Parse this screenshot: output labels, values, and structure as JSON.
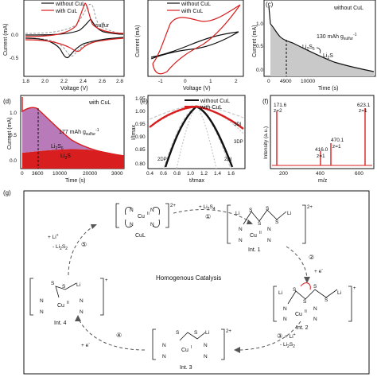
{
  "panels": {
    "a": {
      "ylabel": "Current (mA)",
      "xlabel": "Voltage (V)",
      "xticks": [
        "1.8",
        "2.0",
        "2.2",
        "2.4",
        "2.6",
        "2.8"
      ],
      "yticks": [
        "0.0",
        "-0.5"
      ],
      "legend": [
        "without CuL",
        "with CuL"
      ],
      "note": "sulfur"
    },
    "b": {
      "ylabel": "Current (mA)",
      "xlabel": "Voltage (V)",
      "xticks": [
        "-1",
        "0",
        "1",
        "2"
      ],
      "legend": [
        "without CuL",
        "with CuL"
      ]
    },
    "c": {
      "tag": "(c)",
      "ylabel": "Current (mA)",
      "xlabel": "Time (s)",
      "yticks": [
        "1.0",
        "0.5",
        "0.0"
      ],
      "xticks": [
        "0",
        "4900",
        "10000"
      ],
      "title": "without CuL",
      "capacity": "130 mAh g",
      "capacity_sub": "sulfur",
      "capacity_sup": "-1",
      "species": [
        "Li2S6",
        "Li2S"
      ]
    },
    "d": {
      "tag": "(d)",
      "ylabel": "Current (mA)",
      "xlabel": "Time (s)",
      "yticks": [
        "1.0",
        "0.5",
        "0.0"
      ],
      "xticks": [
        "0",
        "3600",
        "10000",
        "20000",
        "3000"
      ],
      "title": "with CuL",
      "capacity": "177 mAh g",
      "capacity_sub": "sulfur",
      "capacity_sup": "-1",
      "species": [
        "Li2S6",
        "Li2S"
      ]
    },
    "e": {
      "tag": "(e)",
      "ylabel": "I/Imax",
      "xlabel": "t/tmax",
      "yticks": [
        "1.05",
        "1.00",
        "0.95",
        "0.90",
        "0.85",
        "0.80"
      ],
      "xticks": [
        "0.4",
        "0.6",
        "0.8",
        "1.0",
        "1.2",
        "1.4",
        "1.6"
      ],
      "legend": [
        "without CuL",
        "with CuL"
      ],
      "models": [
        "3DI",
        "3DP",
        "2DI",
        "2DP"
      ]
    },
    "f": {
      "tag": "(f)",
      "ylabel": "Intensity (a.u.)",
      "xlabel": "m/z",
      "xticks": [
        "200",
        "400",
        "600"
      ],
      "peaks": [
        {
          "mz": "171.6",
          "z": "z=2"
        },
        {
          "mz": "416.0",
          "z": "z=1"
        },
        {
          "mz": "470.1",
          "z": "z=1"
        },
        {
          "mz": "623.1",
          "z": "z=1"
        }
      ]
    },
    "g": {
      "tag": "(g)",
      "center": "Homogenous Catalysis",
      "species": [
        "CuL",
        "Int. 1",
        "Int. 2",
        "Int. 3",
        "Int. 4"
      ],
      "steps": [
        "①",
        "②",
        "③",
        "④",
        "⑤"
      ],
      "reagents": {
        "s1": "+ Li2S4",
        "s2": "+ e-",
        "s3a": "+ Li+",
        "s3b": "- Li2S2",
        "s4": "+ e-",
        "s5a": "+ Li+",
        "s5b": "- Li2S2"
      },
      "cu_labels": [
        "Cu",
        "Cu",
        "Cu",
        "Cu",
        "Cu"
      ],
      "ox": [
        "II",
        "II",
        "II",
        "I",
        "II"
      ],
      "charges": [
        "2+",
        "2+",
        "+",
        "2+",
        "+"
      ],
      "atoms": {
        "N": "N",
        "S": "S",
        "Li": "Li"
      }
    }
  }
}
